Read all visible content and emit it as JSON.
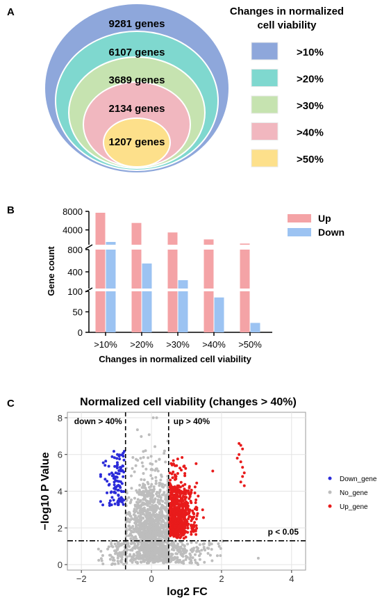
{
  "panels": {
    "a": {
      "label": "A",
      "legend_title_line1": "Changes in normalized",
      "legend_title_line2": "cell viability",
      "levels": [
        {
          "genes": "9281 genes",
          "threshold": ">10%",
          "color": "#8ea7db"
        },
        {
          "genes": "6107 genes",
          "threshold": ">20%",
          "color": "#7fd8cf"
        },
        {
          "genes": "3689 genes",
          "threshold": ">30%",
          "color": "#c6e3b0"
        },
        {
          "genes": "2134 genes",
          "threshold": ">40%",
          "color": "#f1b7bf"
        },
        {
          "genes": "1207 genes",
          "threshold": ">50%",
          "color": "#fde08b"
        }
      ]
    },
    "b": {
      "label": "B"
    },
    "c": {
      "label": "C"
    }
  },
  "chart_data": [
    {
      "type": "bar",
      "categories": [
        ">10%",
        ">20%",
        ">30%",
        ">40%",
        ">50%"
      ],
      "series": [
        {
          "name": "Up",
          "color": "#f4a3a6",
          "values": [
            7700,
            5500,
            3450,
            1950,
            1050
          ]
        },
        {
          "name": "Down",
          "color": "#9cc3f2",
          "values": [
            1400,
            550,
            250,
            85,
            23
          ]
        }
      ],
      "xlabel": "Changes in normalized cell viability",
      "ylabel": "Gene count",
      "y_segments": [
        {
          "range": [
            0,
            100
          ],
          "ticks": [
            0,
            50,
            100
          ]
        },
        {
          "range": [
            100,
            800
          ],
          "ticks": [
            400,
            800
          ]
        },
        {
          "range": [
            800,
            8000
          ],
          "ticks": [
            4000,
            8000
          ]
        }
      ],
      "legend_position": "top-right"
    },
    {
      "type": "scatter",
      "title": "Normalized cell viability (changes > 40%)",
      "xlabel": "log2 FC",
      "ylabel": "−log10 P Value",
      "xlim": [
        -2.4,
        4.4
      ],
      "ylim": [
        -0.3,
        8.3
      ],
      "xticks": [
        -2,
        0,
        2,
        4
      ],
      "yticks": [
        0,
        2,
        4,
        6,
        8
      ],
      "thresholds": {
        "x_down": -0.74,
        "x_up": 0.49,
        "y": 1.3
      },
      "annotations": {
        "down": "down > 40%",
        "up": "up > 40%",
        "p": "p < 0.05"
      },
      "series": [
        {
          "name": "Down_gene",
          "color": "#2b2bd9"
        },
        {
          "name": "No_gene",
          "color": "#bdbdbd"
        },
        {
          "name": "Up_gene",
          "color": "#e81b1b"
        }
      ],
      "legend_position": "right",
      "grid": true
    }
  ]
}
